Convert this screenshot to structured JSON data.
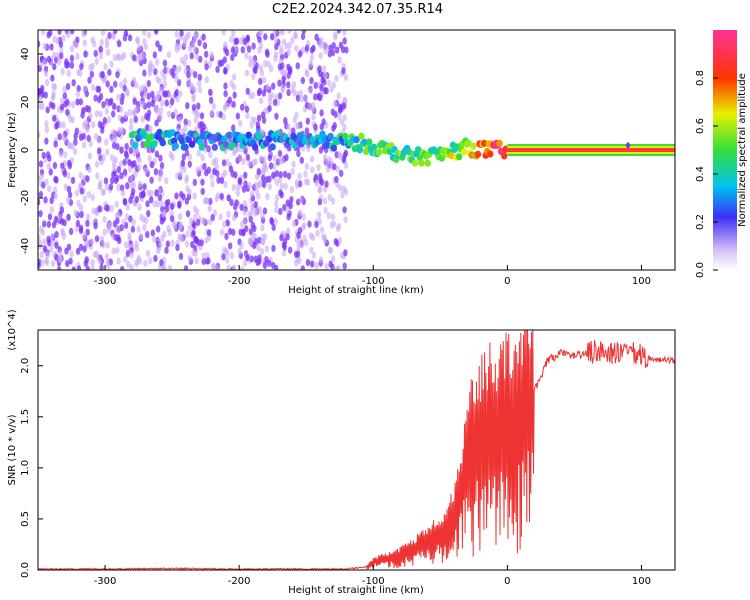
{
  "title": "C2E2.2024.342.07.35.R14",
  "colors": {
    "snr_line": "#ee3333",
    "spectral_dots": "#7b2ff7",
    "spectral_faint": "#c9a8f5",
    "frame": "#000000"
  },
  "chart_data": [
    {
      "type": "heatmap",
      "title": "C2E2.2024.342.07.35.R14",
      "xlabel": "Height of straight line (km)",
      "ylabel": "Frequency (Hz)",
      "xlim": [
        -350,
        125
      ],
      "ylim": [
        -50,
        50
      ],
      "x_ticks": [
        -300,
        -200,
        -100,
        0,
        100
      ],
      "y_ticks": [
        -40,
        -20,
        0,
        20,
        40
      ],
      "colorbar": {
        "label": "Normalized spectral amplitude",
        "range": [
          0,
          1
        ],
        "ticks": [
          0.0,
          0.2,
          0.4,
          0.6,
          0.8
        ],
        "colormap": "rainbow (violet to red)"
      },
      "ridge": {
        "description": "concentrated signal near 0 Hz becoming a steady tone after ~0 km",
        "points": [
          {
            "x": -280,
            "y": 5,
            "amp": 0.4
          },
          {
            "x": -240,
            "y": 4,
            "amp": 0.3
          },
          {
            "x": -200,
            "y": 4,
            "amp": 0.3
          },
          {
            "x": -150,
            "y": 4,
            "amp": 0.25
          },
          {
            "x": -110,
            "y": 3,
            "amp": 0.45
          },
          {
            "x": -90,
            "y": 0,
            "amp": 0.5
          },
          {
            "x": -70,
            "y": -3,
            "amp": 0.45
          },
          {
            "x": -50,
            "y": -2,
            "amp": 0.5
          },
          {
            "x": -30,
            "y": 1,
            "amp": 0.6
          },
          {
            "x": -15,
            "y": 0,
            "amp": 0.8
          },
          {
            "x": 0,
            "y": 0,
            "amp": 0.9
          },
          {
            "x": 60,
            "y": 0,
            "amp": 1.0
          },
          {
            "x": 125,
            "y": 0,
            "amp": 1.0
          }
        ]
      },
      "noise_region_x": [
        -350,
        -120
      ]
    },
    {
      "type": "line",
      "xlabel": "Height of straight line (km)",
      "ylabel": "SNR (10 * v/v)",
      "y_scale_label": "(x10^4)",
      "xlim": [
        -350,
        125
      ],
      "ylim": [
        0,
        2.35
      ],
      "x_ticks": [
        -300,
        -200,
        -100,
        0,
        100
      ],
      "y_ticks": [
        0.0,
        0.5,
        1.0,
        1.5,
        2.0
      ],
      "series": [
        {
          "x": [
            -350,
            -300,
            -250,
            -200,
            -150,
            -120,
            -105,
            -100,
            -90,
            -80,
            -70,
            -60,
            -50,
            -40,
            -35,
            -30,
            -25,
            -20,
            -15,
            -10,
            -5,
            0,
            10,
            20,
            30,
            40,
            50,
            60,
            70,
            80,
            90,
            100,
            110,
            125
          ],
          "y": [
            0.01,
            0.01,
            0.015,
            0.01,
            0.01,
            0.01,
            0.03,
            0.08,
            0.12,
            0.15,
            0.2,
            0.3,
            0.35,
            0.55,
            0.8,
            1.1,
            1.3,
            1.4,
            1.45,
            1.5,
            1.5,
            1.6,
            1.6,
            1.75,
            2.05,
            2.12,
            2.1,
            2.12,
            2.15,
            2.12,
            2.12,
            2.1,
            2.06,
            2.05
          ]
        }
      ]
    }
  ]
}
